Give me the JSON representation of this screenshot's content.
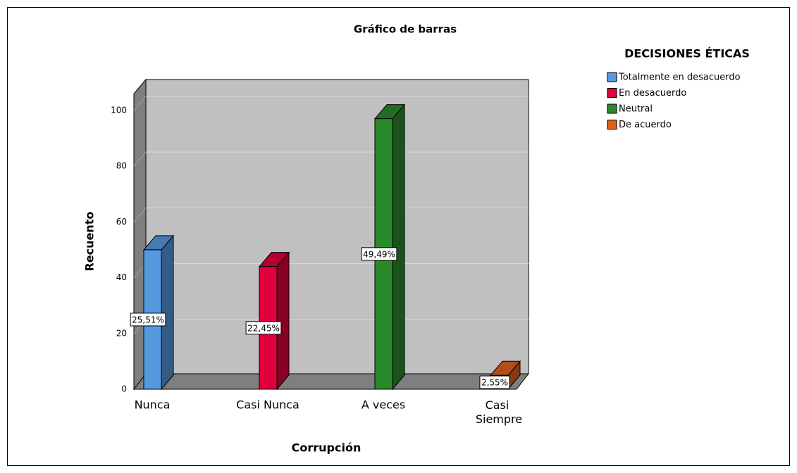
{
  "chart_data": {
    "type": "bar3d",
    "title": "Gráfico de barras",
    "x_label": "Corrupción",
    "y_label": "Recuento",
    "legend_title": "DECISIONES ÉTICAS",
    "categories": [
      "Nunca",
      "Casi Nunca",
      "A veces",
      "Casi Siempre"
    ],
    "series": [
      {
        "name": "Totalmente en desacuerdo",
        "color": "#5799e0",
        "values": [
          50,
          null,
          null,
          null
        ],
        "percentage_labels": [
          "25,51%",
          null,
          null,
          null
        ]
      },
      {
        "name": "En desacuerdo",
        "color": "#e0003c",
        "values": [
          null,
          44,
          null,
          null
        ],
        "percentage_labels": [
          null,
          "22,45%",
          null,
          null
        ]
      },
      {
        "name": "Neutral",
        "color": "#2a8a2a",
        "values": [
          null,
          null,
          97,
          null
        ],
        "percentage_labels": [
          null,
          null,
          "49,49%",
          null
        ]
      },
      {
        "name": "De acuerdo",
        "color": "#e06020",
        "values": [
          null,
          null,
          null,
          5
        ],
        "percentage_labels": [
          null,
          null,
          null,
          "2,55%"
        ]
      }
    ],
    "ylim": [
      0,
      106
    ],
    "yticks": [
      0,
      20,
      40,
      60,
      80,
      100
    ],
    "grid": true,
    "legend": "upper right"
  }
}
